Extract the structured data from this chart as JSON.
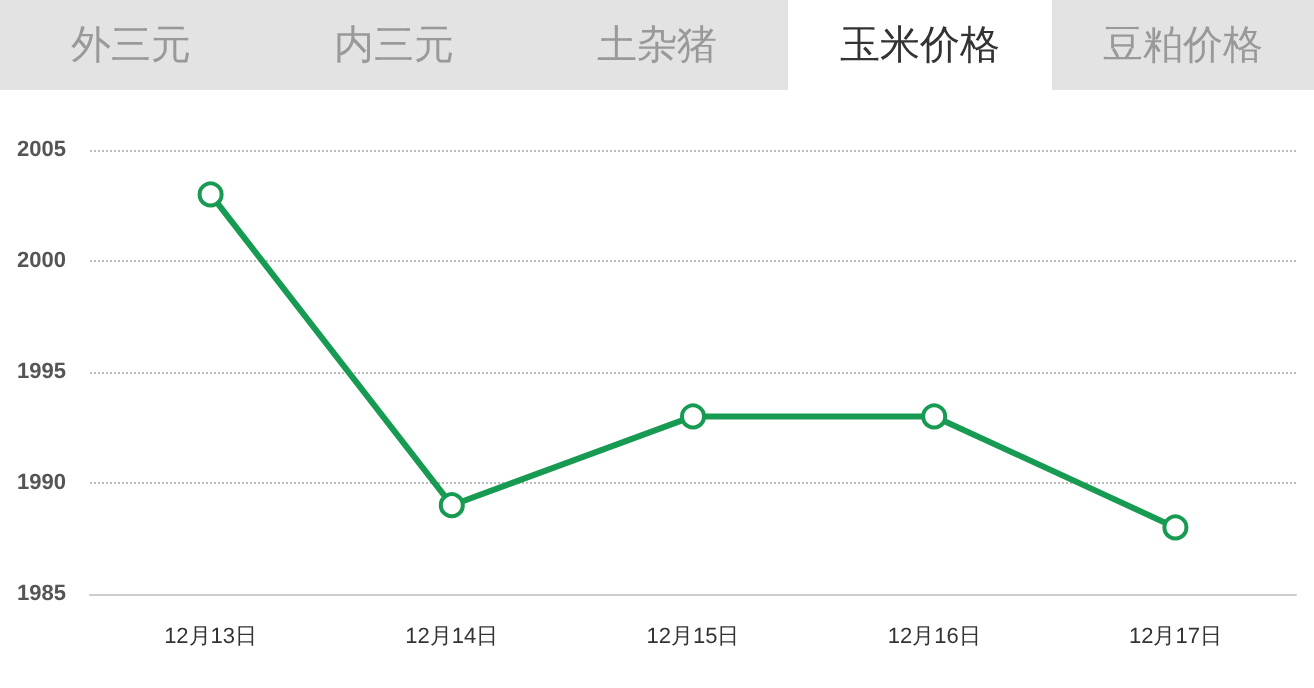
{
  "chart_data": {
    "type": "line",
    "title": "玉米价格",
    "annotations": [
      "外三元",
      "内三元",
      "土杂猪",
      "豆粕价格"
    ],
    "categories": [
      "12月13日",
      "12月14日",
      "12月15日",
      "12月16日",
      "12月17日"
    ],
    "series": [
      {
        "color": "#179b52",
        "values": [
          2003,
          1989,
          1993,
          1993,
          1988
        ]
      }
    ],
    "ylim": [
      1985,
      2005
    ],
    "yticks": [
      1985,
      1990,
      1995,
      2000,
      2005
    ],
    "grid": "y",
    "marker": "circle",
    "line_style": "solid"
  }
}
